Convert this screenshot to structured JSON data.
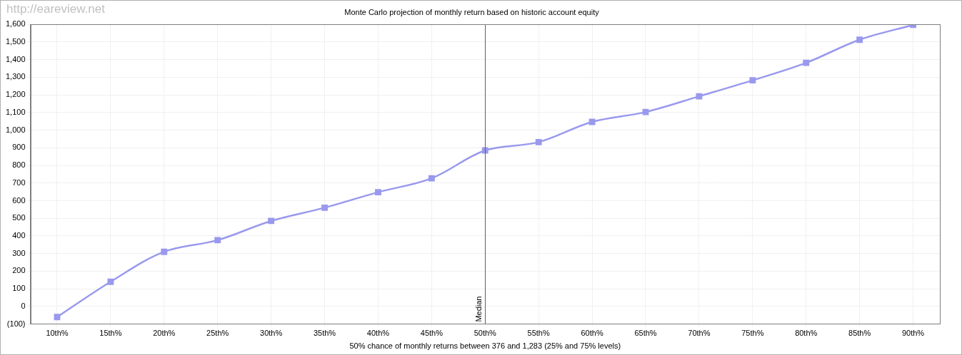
{
  "chart_data": {
    "type": "line",
    "title": "Monte Carlo projection of monthly return based on historic account equity",
    "x_label": "50% chance of monthly returns between 376 and 1,283 (25% and 75% levels)",
    "watermark": "http://eareview.net",
    "categories": [
      "10th%",
      "15th%",
      "20th%",
      "25th%",
      "30th%",
      "35th%",
      "40th%",
      "45th%",
      "50th%",
      "55th%",
      "60th%",
      "65th%",
      "70th%",
      "75th%",
      "80th%",
      "85th%",
      "90th%"
    ],
    "values": [
      -60,
      140,
      310,
      376,
      485,
      560,
      648,
      727,
      885,
      932,
      1047,
      1103,
      1192,
      1283,
      1382,
      1513,
      1597
    ],
    "color": "#9999ee",
    "marker": "square",
    "line_style": "solid",
    "ylim": [
      -100,
      1600
    ],
    "yticks": [
      {
        "value": -100,
        "label": "(100)"
      },
      0,
      100,
      200,
      300,
      400,
      500,
      600,
      700,
      800,
      900,
      {
        "value": 1000,
        "label": "1,000"
      },
      {
        "value": 1100,
        "label": "1,100"
      },
      {
        "value": 1200,
        "label": "1,200"
      },
      {
        "value": 1300,
        "label": "1,300"
      },
      {
        "value": 1400,
        "label": "1,400"
      },
      {
        "value": 1500,
        "label": "1,500"
      },
      {
        "value": 1600,
        "label": "1,600"
      }
    ],
    "grid": true,
    "annotations": [
      {
        "x": "50th%",
        "label": "Median"
      }
    ]
  }
}
